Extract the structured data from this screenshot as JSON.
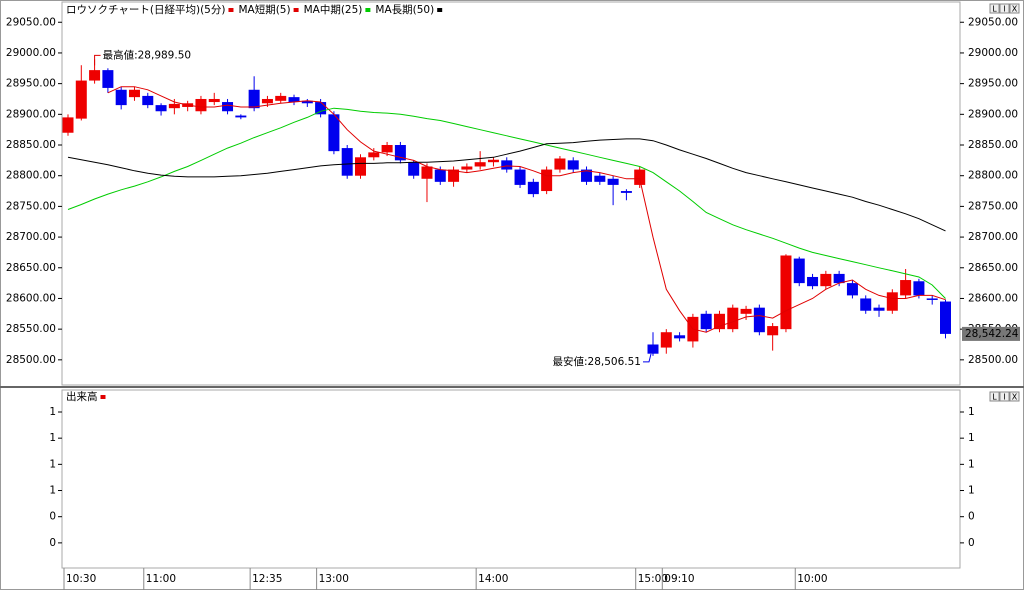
{
  "chart_data": [
    {
      "type": "candlestick",
      "title": "ロウソクチャート(日経平均)(5分)",
      "color": "#e00000",
      "up_color": "#ee0000",
      "down_color": "#0000ee",
      "categories": [
        "10:30",
        null,
        null,
        null,
        null,
        null,
        "11:00",
        null,
        null,
        null,
        null,
        null,
        null,
        null,
        "12:35",
        null,
        null,
        null,
        null,
        "13:00",
        null,
        null,
        null,
        null,
        null,
        null,
        null,
        null,
        null,
        null,
        null,
        "14:00",
        null,
        null,
        null,
        null,
        null,
        null,
        null,
        null,
        null,
        null,
        null,
        "15:00",
        null,
        "09:10",
        null,
        null,
        null,
        null,
        null,
        null,
        null,
        null,
        null,
        "10:00",
        null,
        null,
        null,
        null,
        null,
        null,
        null,
        null,
        null,
        null,
        null
      ],
      "open": [
        28870,
        28893,
        28955,
        28972,
        28940,
        28928,
        28930,
        28915,
        28910,
        28912,
        28905,
        28920,
        28920,
        28898,
        28940,
        28918,
        28922,
        28928,
        28922,
        28920,
        28900,
        28845,
        28800,
        28830,
        28838,
        28850,
        28822,
        28795,
        28810,
        28790,
        28810,
        28815,
        28822,
        28825,
        28810,
        28790,
        28775,
        28810,
        28825,
        28810,
        28800,
        28795,
        28775,
        28785,
        28525,
        28520,
        28540,
        28530,
        28575,
        28550,
        28550,
        28575,
        28585,
        28540,
        28550,
        28665,
        28635,
        28620,
        28640,
        28625,
        28600,
        28585,
        28580,
        28605,
        28628,
        28600,
        28595
      ],
      "high": [
        28900,
        28980,
        28989.5,
        28975,
        28945,
        28945,
        28935,
        28918,
        28925,
        28922,
        28930,
        28935,
        28925,
        28900,
        28962,
        28930,
        28935,
        28932,
        28925,
        28925,
        28905,
        28850,
        28835,
        28845,
        28855,
        28855,
        28825,
        28820,
        28815,
        28815,
        28820,
        28840,
        28830,
        28830,
        28815,
        28795,
        28815,
        28832,
        28830,
        28815,
        28805,
        28800,
        28778,
        28815,
        28545,
        28550,
        28545,
        28575,
        28580,
        28580,
        28590,
        28588,
        28590,
        28560,
        28672,
        28668,
        28640,
        28645,
        28645,
        28630,
        28605,
        28590,
        28615,
        28648,
        28632,
        28605,
        28598
      ],
      "low": [
        28865,
        28890,
        28950,
        28935,
        28908,
        28922,
        28910,
        28898,
        28900,
        28905,
        28900,
        28915,
        28900,
        28892,
        28905,
        28912,
        28918,
        28915,
        28912,
        28895,
        28835,
        28795,
        28795,
        28825,
        28832,
        28820,
        28795,
        28757,
        28785,
        28782,
        28805,
        28810,
        28815,
        28805,
        28780,
        28765,
        28770,
        28805,
        28805,
        28785,
        28785,
        28752,
        28760,
        28780,
        28506.51,
        28510,
        28530,
        28520,
        28545,
        28545,
        28545,
        28565,
        28540,
        28515,
        28545,
        28620,
        28615,
        28615,
        28620,
        28600,
        28575,
        28570,
        28575,
        28600,
        28600,
        28590,
        28535
      ],
      "close": [
        28895,
        28955,
        28972,
        28943,
        28915,
        28940,
        28915,
        28905,
        28917,
        28918,
        28925,
        28925,
        28905,
        28895,
        28910,
        28925,
        28930,
        28920,
        28918,
        28900,
        28840,
        28800,
        28830,
        28838,
        28850,
        28825,
        28800,
        28815,
        28790,
        28810,
        28815,
        28822,
        28826,
        28810,
        28785,
        28770,
        28810,
        28828,
        28810,
        28790,
        28790,
        28785,
        28772,
        28810,
        28510,
        28545,
        28535,
        28570,
        28550,
        28575,
        28585,
        28583,
        28545,
        28555,
        28670,
        28625,
        28620,
        28640,
        28625,
        28605,
        28580,
        28580,
        28610,
        28630,
        28605,
        28598,
        28542.24
      ],
      "series": [
        {
          "name": "MA短期(5)",
          "color": "#e00000",
          "values": [
            null,
            null,
            null,
            28935,
            28945,
            28945,
            28940,
            28930,
            28920,
            28915,
            28912,
            28912,
            28915,
            28912,
            28912,
            28915,
            28918,
            28920,
            28922,
            28920,
            28900,
            28875,
            28855,
            28840,
            28835,
            28830,
            28825,
            28815,
            28810,
            28808,
            28805,
            28808,
            28812,
            28816,
            28815,
            28808,
            28800,
            28800,
            28805,
            28808,
            28805,
            28800,
            28795,
            28795,
            28700,
            28615,
            28580,
            28550,
            28545,
            28555,
            28562,
            28570,
            28572,
            28568,
            28580,
            28590,
            28600,
            28615,
            28625,
            28630,
            28615,
            28605,
            28600,
            28600,
            28605,
            28605,
            28598
          ]
        },
        {
          "name": "MA中期(25)",
          "color": "#00cc00",
          "values": [
            28745,
            28753,
            28762,
            28770,
            28777,
            28783,
            28790,
            28798,
            28807,
            28815,
            28825,
            28835,
            28845,
            28853,
            28862,
            28870,
            28878,
            28887,
            28895,
            28905,
            28910,
            28908,
            28905,
            28903,
            28902,
            28900,
            28897,
            28893,
            28890,
            28885,
            28880,
            28875,
            28870,
            28865,
            28860,
            28855,
            28850,
            28845,
            28840,
            28835,
            28830,
            28825,
            28820,
            28815,
            28805,
            28790,
            28775,
            28758,
            28740,
            28730,
            28720,
            28712,
            28705,
            28698,
            28690,
            28682,
            28675,
            28670,
            28665,
            28660,
            28655,
            28650,
            28645,
            28640,
            28635,
            28622,
            28600
          ]
        },
        {
          "name": "MA長期(50)",
          "color": "#000000",
          "values": [
            28830,
            28826,
            28822,
            28818,
            28813,
            28808,
            28804,
            28801,
            28799,
            28798,
            28798,
            28798,
            28799,
            28800,
            28802,
            28804,
            28807,
            28810,
            28813,
            28816,
            28818,
            28819,
            28820,
            28820,
            28821,
            28821,
            28822,
            28822,
            28823,
            28824,
            28826,
            28828,
            28830,
            28835,
            28840,
            28846,
            28852,
            28853,
            28854,
            28856,
            28858,
            28859,
            28860,
            28860,
            28857,
            28850,
            28842,
            28835,
            28828,
            28820,
            28812,
            28805,
            28800,
            28795,
            28790,
            28785,
            28780,
            28775,
            28770,
            28765,
            28758,
            28752,
            28745,
            28738,
            28730,
            28720,
            28710
          ]
        }
      ],
      "ylim": [
        28459,
        29083
      ],
      "yticks": [
        {
          "value": 28500,
          "label": "28500.00"
        },
        {
          "value": 28550,
          "label": "28550.00"
        },
        {
          "value": 28600,
          "label": "28600.00"
        },
        {
          "value": 28650,
          "label": "28650.00"
        },
        {
          "value": 28700,
          "label": "28700.00"
        },
        {
          "value": 28750,
          "label": "28750.00"
        },
        {
          "value": 28800,
          "label": "28800.00"
        },
        {
          "value": 28850,
          "label": "28850.00"
        },
        {
          "value": 28900,
          "label": "28900.00"
        },
        {
          "value": 28950,
          "label": "28950.00"
        },
        {
          "value": 29000,
          "label": "29000.00"
        },
        {
          "value": 29050,
          "label": "29050.00"
        }
      ],
      "annotations": [
        {
          "value": 28989.5,
          "label": "最高値:28,989.50",
          "color": "#e00000"
        },
        {
          "value": 28506.51,
          "label": "最安値:28,506.51",
          "color": "#0000ee"
        }
      ],
      "last_price": {
        "value": 28542.24,
        "label": "28,542.24"
      }
    },
    {
      "type": "volume",
      "title": "出来高",
      "color": "#e00000",
      "ylim": [
        -0.24,
        1.46
      ],
      "yticks": [
        {
          "value": 1.25,
          "label": "1"
        },
        {
          "value": 1,
          "label": "1"
        },
        {
          "value": 0.75,
          "label": "1"
        },
        {
          "value": 0.5,
          "label": "1"
        },
        {
          "value": 0.25,
          "label": "0"
        },
        {
          "value": 0,
          "label": "0"
        }
      ]
    }
  ],
  "ui": {
    "buttons": [
      "L",
      "I",
      "X"
    ]
  }
}
